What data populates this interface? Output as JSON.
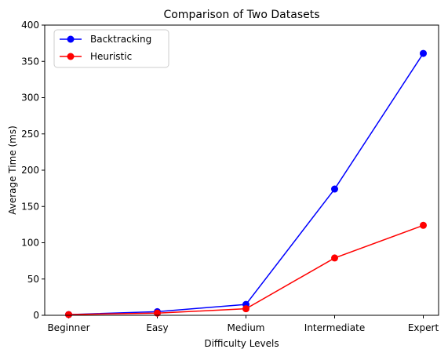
{
  "chart_data": {
    "type": "line",
    "title": "Comparison of Two Datasets",
    "xlabel": "Difficulty Levels",
    "ylabel": "Average Time (ms)",
    "categories": [
      "Beginner",
      "Easy",
      "Medium",
      "Intermediate",
      "Expert"
    ],
    "ylim": [
      0,
      400
    ],
    "yticks": [
      0,
      50,
      100,
      150,
      200,
      250,
      300,
      350,
      400
    ],
    "grid": false,
    "legend_position": "top-left",
    "series": [
      {
        "name": "Backtracking",
        "color": "#0000ff",
        "marker": "circle",
        "values": [
          1,
          5,
          15,
          174,
          361
        ]
      },
      {
        "name": "Heuristic",
        "color": "#ff0000",
        "marker": "circle",
        "values": [
          1,
          3,
          9,
          79,
          124
        ]
      }
    ]
  }
}
